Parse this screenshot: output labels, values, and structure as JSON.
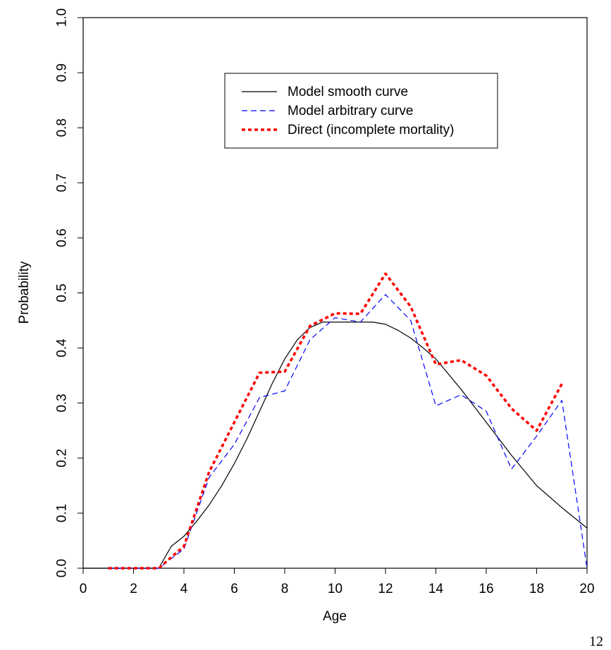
{
  "chart_data": {
    "type": "line",
    "title": "",
    "xlabel": "Age",
    "ylabel": "Probability",
    "xlim": [
      0,
      20
    ],
    "ylim": [
      0,
      1
    ],
    "xticks": [
      0,
      2,
      4,
      6,
      8,
      10,
      12,
      14,
      16,
      18,
      20
    ],
    "yticks": [
      "0.0",
      "0.1",
      "0.2",
      "0.3",
      "0.4",
      "0.5",
      "0.6",
      "0.7",
      "0.8",
      "0.9",
      "1.0"
    ],
    "grid": false,
    "legend_position": "top-center",
    "series": [
      {
        "name": "Model smooth curve",
        "color": "#000000",
        "style": "solid",
        "x": [
          0,
          1,
          2,
          3,
          3.5,
          4,
          4.5,
          5,
          5.5,
          6,
          6.5,
          7,
          7.5,
          8,
          8.5,
          9,
          9.5,
          10,
          10.5,
          11,
          11.5,
          12,
          12.5,
          13,
          13.5,
          14,
          15,
          16,
          17,
          18,
          19,
          20
        ],
        "y": [
          0,
          0,
          0,
          0,
          0.04,
          0.058,
          0.085,
          0.115,
          0.15,
          0.19,
          0.235,
          0.285,
          0.335,
          0.38,
          0.415,
          0.437,
          0.447,
          0.447,
          0.447,
          0.447,
          0.447,
          0.443,
          0.432,
          0.418,
          0.4,
          0.38,
          0.325,
          0.265,
          0.205,
          0.15,
          0.11,
          0.073
        ]
      },
      {
        "name": "Model arbitrary curve",
        "color": "#0000ff",
        "style": "dashed",
        "x": [
          1,
          2,
          3,
          4,
          5,
          6,
          7,
          8,
          9,
          10,
          11,
          12,
          13,
          14,
          15,
          16,
          17,
          18,
          19,
          20
        ],
        "y": [
          0,
          0,
          0,
          0.035,
          0.165,
          0.225,
          0.31,
          0.322,
          0.415,
          0.455,
          0.447,
          0.497,
          0.45,
          0.295,
          0.315,
          0.285,
          0.18,
          0.24,
          0.305,
          0.0
        ]
      },
      {
        "name": "Direct (incomplete mortality)",
        "color": "#ff0000",
        "style": "dotted",
        "x": [
          1,
          2,
          3,
          4,
          5,
          6,
          7,
          8,
          9,
          10,
          11,
          12,
          13,
          14,
          15,
          16,
          17,
          18,
          19
        ],
        "y": [
          0,
          0,
          0,
          0.04,
          0.175,
          0.265,
          0.355,
          0.357,
          0.44,
          0.463,
          0.462,
          0.535,
          0.475,
          0.37,
          0.378,
          0.35,
          0.29,
          0.25,
          0.335
        ]
      }
    ]
  },
  "page_number": "12"
}
